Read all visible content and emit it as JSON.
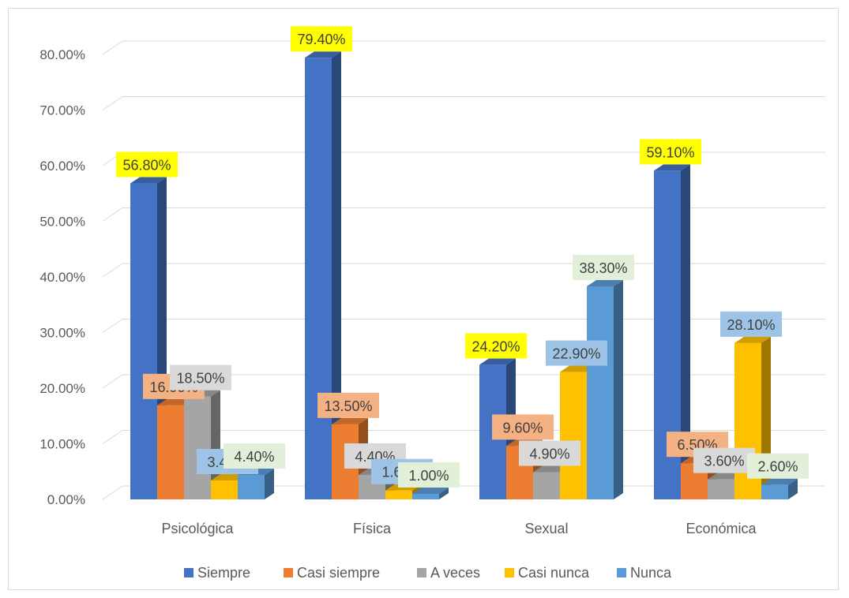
{
  "chart_data": {
    "type": "bar",
    "categories": [
      "Psicológica",
      "Física",
      "Sexual",
      "Económica"
    ],
    "series": [
      {
        "name": "Siempre",
        "values": [
          56.8,
          79.4,
          24.2,
          59.1
        ],
        "labels": [
          "56.80%",
          "79.40%",
          "24.20%",
          "59.10%"
        ],
        "color": "#4472C4",
        "label_bg": "#FFFF00"
      },
      {
        "name": "Casi siempre",
        "values": [
          16.9,
          13.5,
          9.6,
          6.5
        ],
        "labels": [
          "16.90%",
          "13.50%",
          "9.60%",
          "6.50%"
        ],
        "color": "#ED7D31",
        "label_bg": "#F4B183"
      },
      {
        "name": "A veces",
        "values": [
          18.5,
          4.4,
          4.9,
          3.6
        ],
        "labels": [
          "18.50%",
          "4.40%",
          "4.90%",
          "3.60%"
        ],
        "color": "#A5A5A5",
        "label_bg": "#D9D9D9"
      },
      {
        "name": "Casi nunca",
        "values": [
          3.4,
          1.6,
          22.9,
          28.1
        ],
        "labels": [
          "3.40%",
          "1.60%",
          "22.90%",
          "28.10%"
        ],
        "color": "#FFC000",
        "label_bg": "#9DC3E6"
      },
      {
        "name": "Nunca",
        "values": [
          4.4,
          1.0,
          38.3,
          2.6
        ],
        "labels": [
          "4.40%",
          "1.00%",
          "38.30%",
          "2.60%"
        ],
        "color": "#5B9BD5",
        "label_bg": "#E2F0D9"
      }
    ],
    "y_ticks": [
      "0.00%",
      "10.00%",
      "20.00%",
      "30.00%",
      "40.00%",
      "50.00%",
      "60.00%",
      "70.00%",
      "80.00%"
    ],
    "ylim": [
      0,
      80
    ],
    "grid": true,
    "legend_position": "bottom",
    "style": "3d-clustered-column"
  }
}
